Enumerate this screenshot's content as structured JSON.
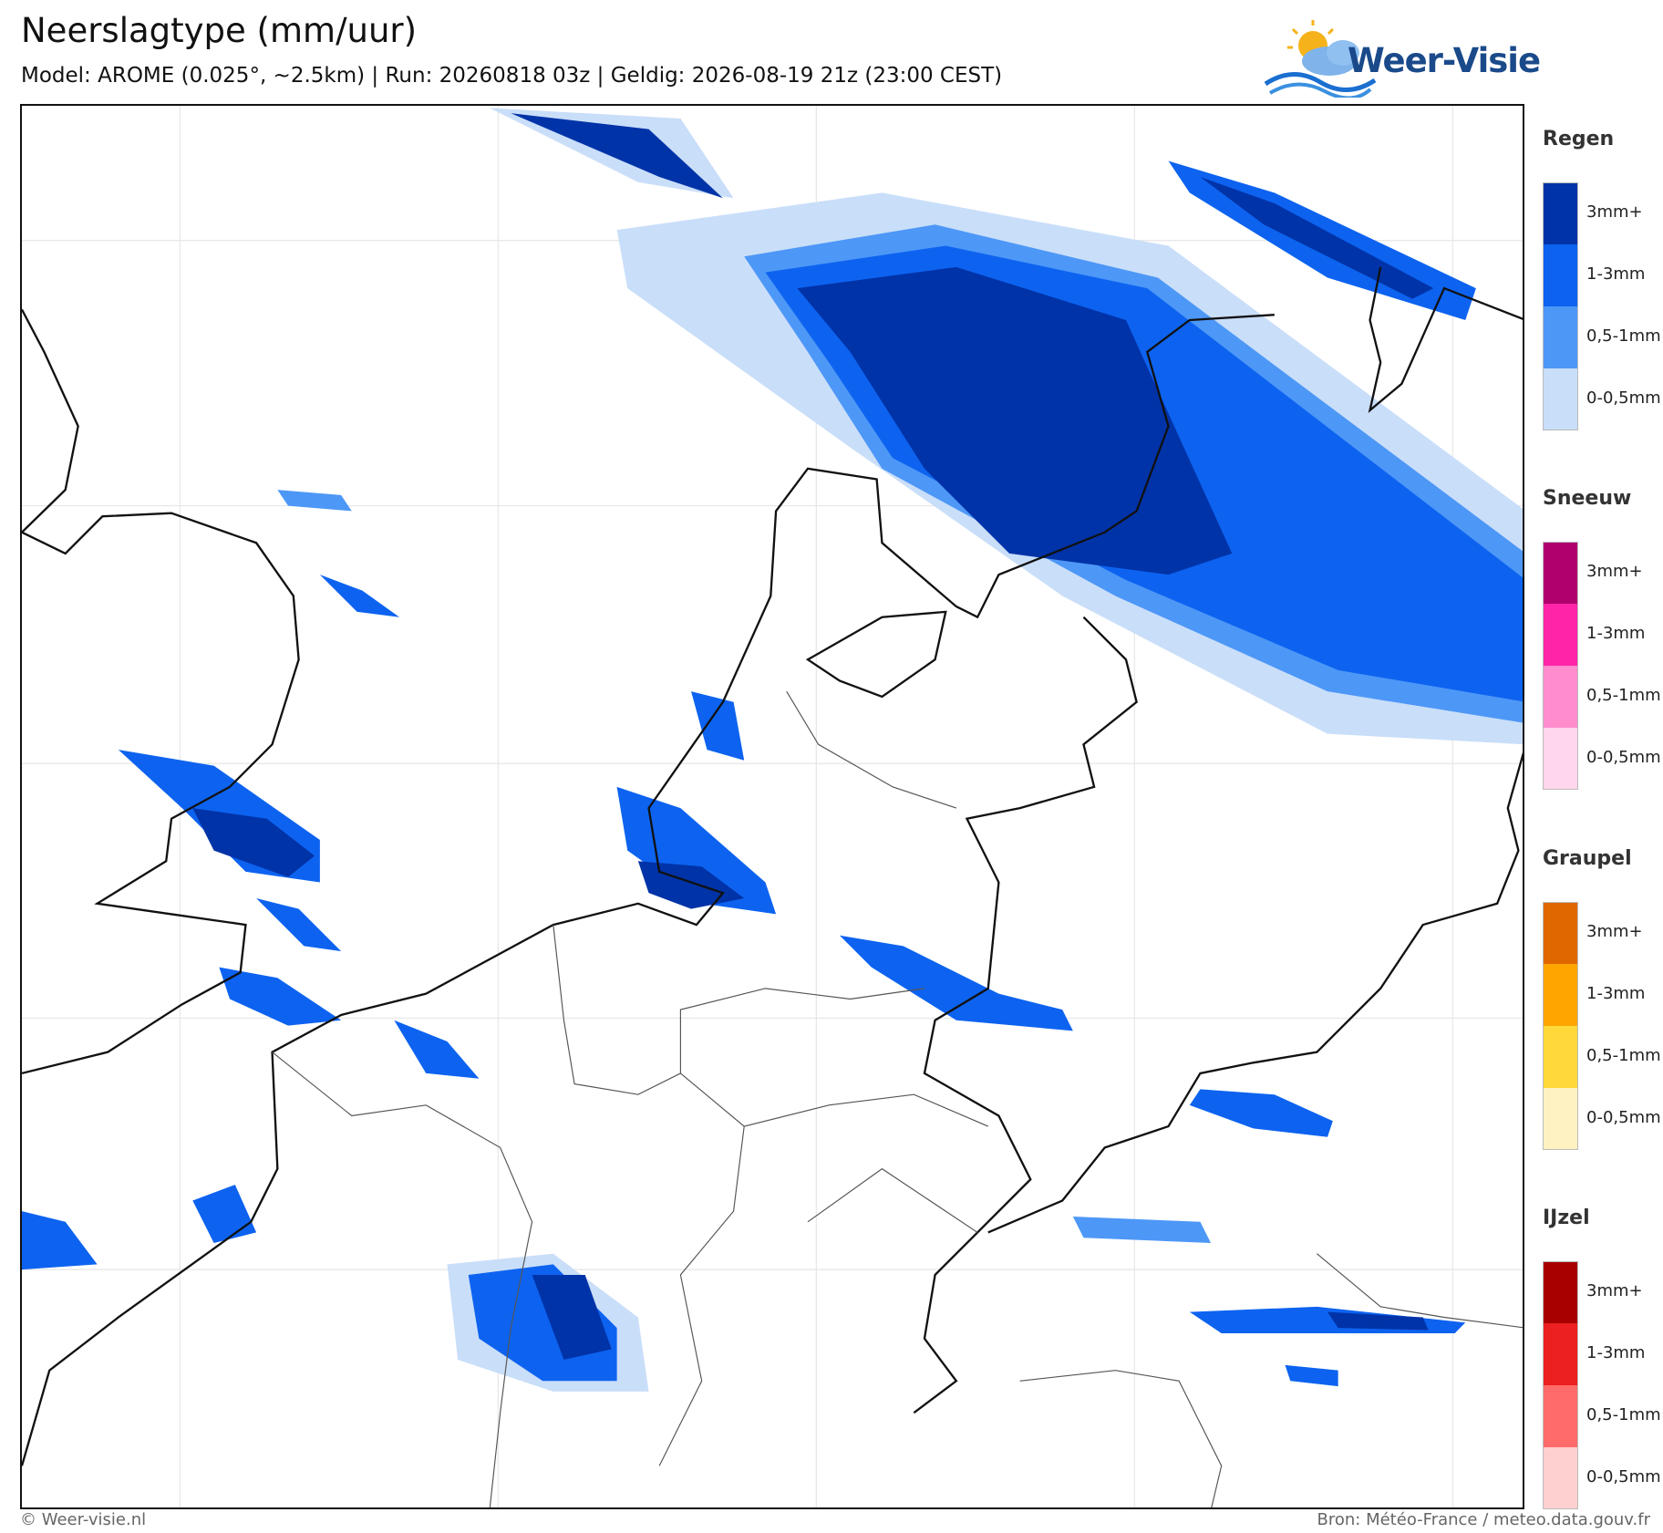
{
  "header": {
    "title": "Neerslagtype (mm/uur)",
    "subtitle": "Model: AROME (0.025°, ~2.5km)  |  Run: 20260818 03z  |  Geldig: 2026-08-19 21z (23:00 CEST)"
  },
  "logo": {
    "text": "Weer-Visie"
  },
  "legend": {
    "groups": [
      {
        "title": "Regen",
        "items": [
          {
            "label": "3mm+",
            "color": "#0033a8"
          },
          {
            "label": "1-3mm",
            "color": "#0d63f0"
          },
          {
            "label": "0,5-1mm",
            "color": "#4d97f7"
          },
          {
            "label": "0-0,5mm",
            "color": "#c9def9"
          }
        ]
      },
      {
        "title": "Sneeuw",
        "items": [
          {
            "label": "3mm+",
            "color": "#b0006e"
          },
          {
            "label": "1-3mm",
            "color": "#ff24a8"
          },
          {
            "label": "0,5-1mm",
            "color": "#ff8ccd"
          },
          {
            "label": "0-0,5mm",
            "color": "#ffd6ec"
          }
        ]
      },
      {
        "title": "Graupel",
        "items": [
          {
            "label": "3mm+",
            "color": "#e06600"
          },
          {
            "label": "1-3mm",
            "color": "#ffa500"
          },
          {
            "label": "0,5-1mm",
            "color": "#ffd83a"
          },
          {
            "label": "0-0,5mm",
            "color": "#fff2c2"
          }
        ]
      },
      {
        "title": "IJzel",
        "items": [
          {
            "label": "3mm+",
            "color": "#a80000"
          },
          {
            "label": "1-3mm",
            "color": "#ec2020"
          },
          {
            "label": "0,5-1mm",
            "color": "#ff6b6b"
          },
          {
            "label": "0-0,5mm",
            "color": "#ffd0d0"
          }
        ]
      }
    ]
  },
  "footer": {
    "left": "© Weer-visie.nl",
    "right": "Bron: Météo-France / meteo.data.gouv.fr"
  }
}
